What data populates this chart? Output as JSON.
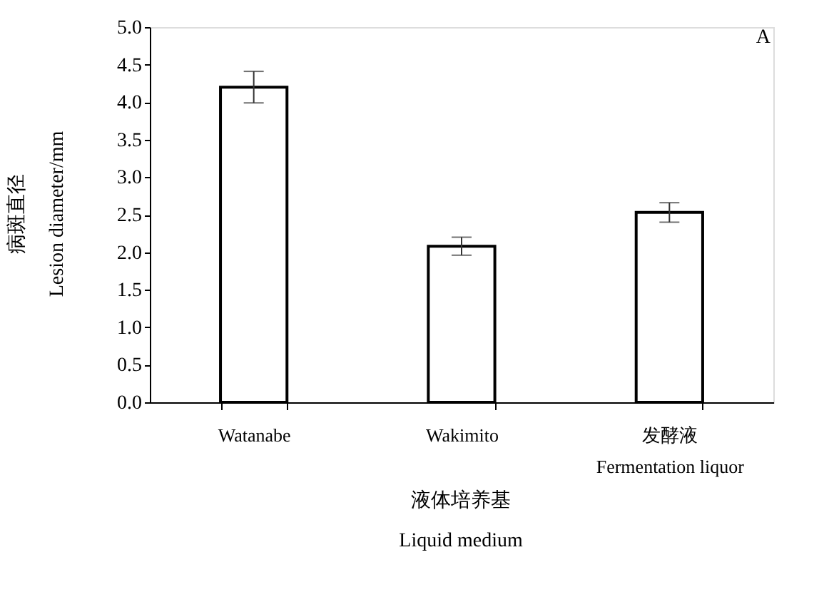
{
  "chart_data": {
    "type": "bar",
    "categories": [
      "Watanabe",
      "Wakimito",
      "发酵液\nFermentation liquor"
    ],
    "values": [
      4.2,
      2.08,
      2.53
    ],
    "errors": [
      0.21,
      0.12,
      0.13
    ],
    "color": "#ffffff",
    "xlabel": "液体培养基\nLiquid medium",
    "ylabel": "病斑直径\nLesion diameter/mm",
    "ylim": [
      0,
      5
    ],
    "yticks": [
      {
        "value": 0,
        "label": "0.0"
      },
      0.5,
      {
        "value": 1,
        "label": "1.0"
      },
      1.5,
      {
        "value": 2,
        "label": "2.0"
      },
      2.5,
      {
        "value": 3,
        "label": "3.0"
      },
      3.5,
      {
        "value": 4,
        "label": "4.0"
      },
      4.5,
      {
        "value": 5,
        "label": "5.0"
      }
    ],
    "annotations": [
      "A"
    ],
    "grid": false
  }
}
